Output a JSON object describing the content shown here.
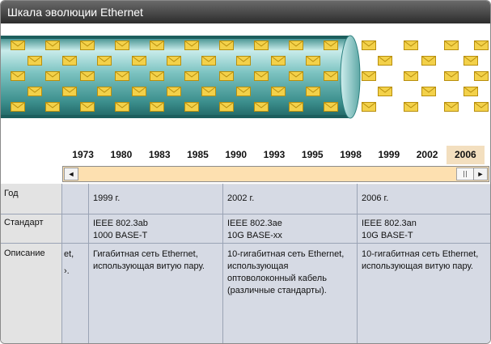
{
  "window": {
    "title": "Шкала эволюции Ethernet"
  },
  "colors": {
    "pipe_light": "#c7ebe9",
    "pipe_dark": "#2c8180",
    "envelope": "#f3d14a",
    "selected_year_bg": "#f3dfbf",
    "scroll_track": "#fde0b0",
    "cell_bg": "#d6dae4"
  },
  "icons": {
    "envelope": "envelope-icon",
    "scroll_left": "◄",
    "scroll_right": "►"
  },
  "timeline": {
    "years": [
      "1973",
      "1980",
      "1983",
      "1985",
      "1990",
      "1993",
      "1995",
      "1998",
      "1999",
      "2002",
      "2006"
    ],
    "selected_year": "2006"
  },
  "table": {
    "row_headers": {
      "year": "Год",
      "standard": "Стандарт",
      "description": "Описание"
    },
    "partial_column": {
      "description_line1": "et,",
      "description_line2": "›."
    },
    "columns": [
      {
        "year": "1999 г.",
        "standard_line1": "IEEE 802.3ab",
        "standard_line2": "1000 BASE-T",
        "description": "Гигабитная сеть Ethernet, использующая витую пару."
      },
      {
        "year": "2002 г.",
        "standard_line1": "IEEE 802.3ae",
        "standard_line2": "10G BASE-xx",
        "description": "10-гигабитная сеть Ethernet, использующая оптоволоконный кабель (различные стандарты)."
      },
      {
        "year": "2006 г.",
        "standard_line1": "IEEE 802.3an",
        "standard_line2": "10G BASE-T",
        "description": "10-гигабитная сеть Ethernet, использующая витую пару."
      }
    ]
  }
}
